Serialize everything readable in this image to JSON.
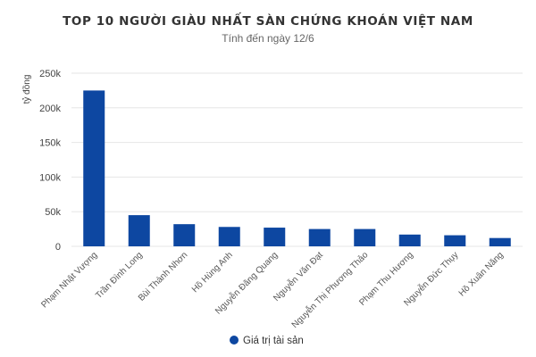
{
  "chart_data": {
    "type": "bar",
    "title": "TOP 10 NGƯỜI GIÀU NHẤT SÀN CHỨNG KHOÁN VIỆT NAM",
    "subtitle": "Tính đến ngày 12/6",
    "ylabel": "tỷ đồng",
    "xlabel": "",
    "categories": [
      "Phạm Nhật Vượng",
      "Trần Đình Long",
      "Bùi Thành Nhơn",
      "Hồ Hùng Anh",
      "Nguyễn Đăng Quang",
      "Nguyễn Văn Đạt",
      "Nguyễn Thị Phương Thảo",
      "Phạm Thu Hương",
      "Nguyễn Đức Thụy",
      "Hồ Xuân Năng"
    ],
    "series": [
      {
        "name": "Giá trị tài sản",
        "color": "#0d47a1",
        "values": [
          225000,
          45000,
          32000,
          28000,
          27000,
          25000,
          25000,
          17000,
          16000,
          12000
        ]
      }
    ],
    "ylim": [
      0,
      250000
    ],
    "yticks": [
      {
        "value": 0,
        "label": "0"
      },
      {
        "value": 50000,
        "label": "50k"
      },
      {
        "value": 100000,
        "label": "100k"
      },
      {
        "value": 150000,
        "label": "150k"
      },
      {
        "value": 200000,
        "label": "200k"
      },
      {
        "value": 250000,
        "label": "250k"
      }
    ],
    "grid": true,
    "legend_position": "bottom-center"
  }
}
